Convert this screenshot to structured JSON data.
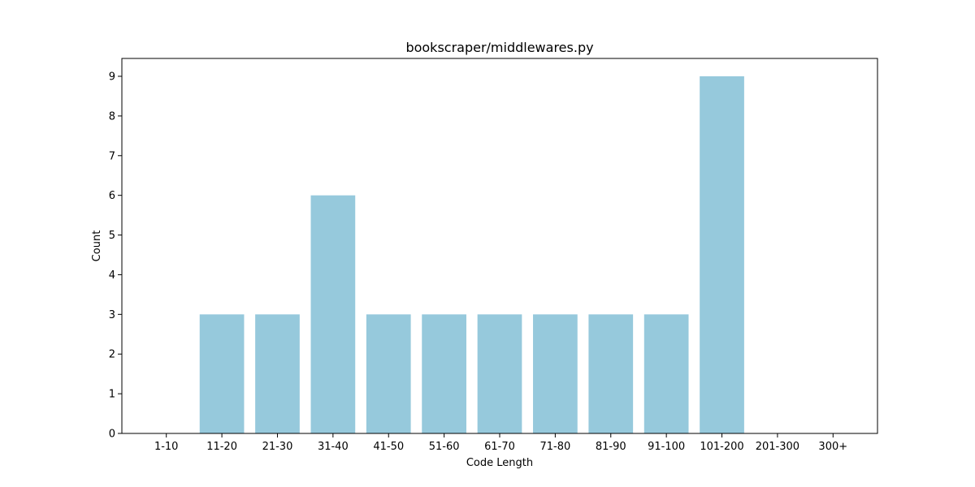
{
  "chart_data": {
    "type": "bar",
    "title": "bookscraper/middlewares.py",
    "xlabel": "Code Length",
    "ylabel": "Count",
    "categories": [
      "1-10",
      "11-20",
      "21-30",
      "31-40",
      "41-50",
      "51-60",
      "61-70",
      "71-80",
      "81-90",
      "91-100",
      "101-200",
      "201-300",
      "300+"
    ],
    "values": [
      0,
      3,
      3,
      6,
      3,
      3,
      3,
      3,
      3,
      3,
      9,
      0,
      0
    ],
    "ylim": [
      0,
      9.45
    ],
    "yticks": [
      "0",
      "1",
      "2",
      "3",
      "4",
      "5",
      "6",
      "7",
      "8",
      "9"
    ],
    "bar_color": "#96c9dc",
    "grid": false,
    "legend": "none"
  }
}
